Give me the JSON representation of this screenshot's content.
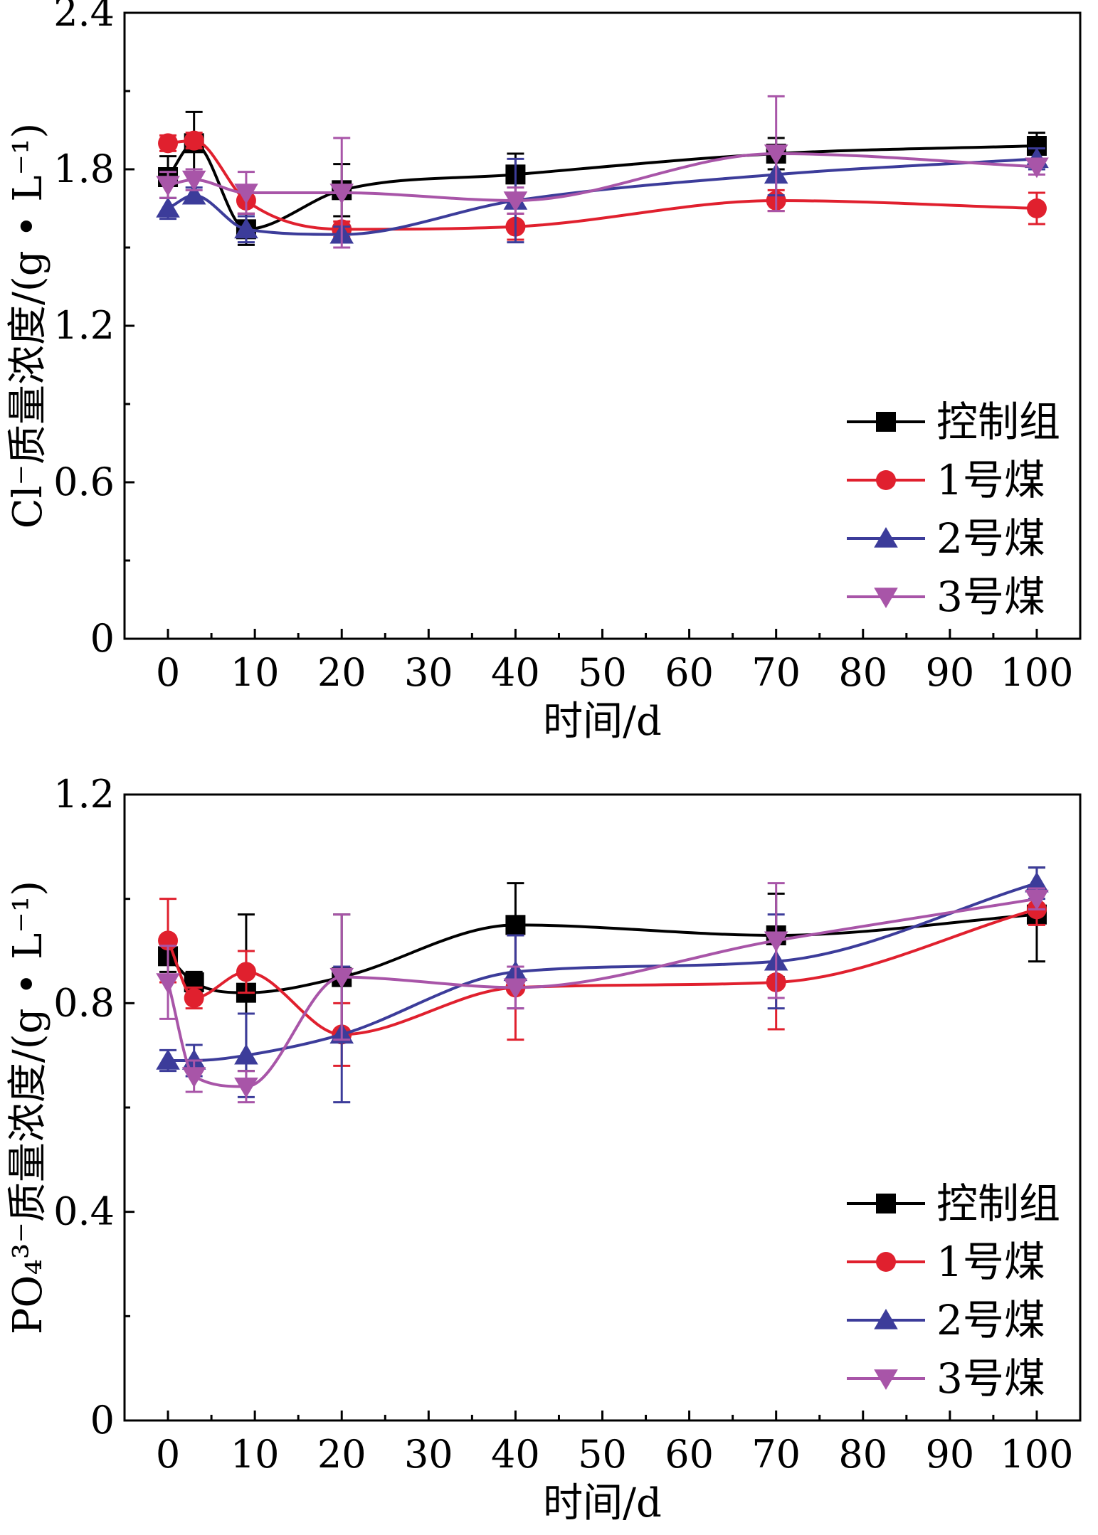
{
  "series_colors": [
    "#000000",
    "#e0202e",
    "#3c3c9a",
    "#a855a8"
  ],
  "series_markers": [
    "square",
    "circle",
    "triangle-up",
    "triangle-down"
  ],
  "chart_data": [
    {
      "type": "line",
      "xlabel": "时间/d",
      "ylabel": "Cl⁻质量浓度/(g • L⁻¹)",
      "xlim": [
        -5,
        105
      ],
      "ylim": [
        0,
        2.4
      ],
      "xticks": [
        "0",
        "10",
        "20",
        "30",
        "40",
        "50",
        "60",
        "70",
        "80",
        "90",
        "100"
      ],
      "yticks": [
        "0",
        "0.6",
        "1.2",
        "1.8",
        "2.4"
      ],
      "legend_position": "lower-right",
      "x": [
        0,
        3,
        9,
        20,
        40,
        70,
        100
      ],
      "series": [
        {
          "name": "控制组",
          "values": [
            1.77,
            1.9,
            1.57,
            1.72,
            1.78,
            1.86,
            1.89
          ],
          "errors": [
            0.08,
            0.12,
            0.06,
            0.1,
            0.08,
            0.06,
            0.05
          ]
        },
        {
          "name": "1号煤",
          "values": [
            1.9,
            1.91,
            1.68,
            1.57,
            1.58,
            1.68,
            1.65
          ],
          "errors": [
            0.03,
            0.03,
            0.05,
            0.03,
            0.05,
            0.04,
            0.06
          ]
        },
        {
          "name": "2号煤",
          "values": [
            1.65,
            1.7,
            1.57,
            1.55,
            1.68,
            1.78,
            1.84
          ],
          "errors": [
            0.04,
            0.03,
            0.05,
            0.03,
            0.16,
            0.08,
            0.04
          ]
        },
        {
          "name": "3号煤",
          "values": [
            1.74,
            1.76,
            1.71,
            1.71,
            1.68,
            1.86,
            1.81
          ],
          "errors": [
            0.05,
            0.04,
            0.08,
            0.21,
            0.05,
            0.22,
            0.03
          ]
        }
      ]
    },
    {
      "type": "line",
      "xlabel": "时间/d",
      "ylabel": "PO₄³⁻质量浓度/(g • L⁻¹)",
      "xlim": [
        -5,
        105
      ],
      "ylim": [
        0,
        1.2
      ],
      "xticks": [
        "0",
        "10",
        "20",
        "30",
        "40",
        "50",
        "60",
        "70",
        "80",
        "90",
        "100"
      ],
      "yticks": [
        "0",
        "0.4",
        "0.8",
        "1.2"
      ],
      "legend_position": "lower-right",
      "x": [
        0,
        3,
        9,
        20,
        40,
        70,
        100
      ],
      "series": [
        {
          "name": "控制组",
          "values": [
            0.89,
            0.84,
            0.82,
            0.85,
            0.95,
            0.93,
            0.97
          ],
          "errors": [
            0.03,
            0.02,
            0.15,
            0.12,
            0.08,
            0.08,
            0.09
          ]
        },
        {
          "name": "1号煤",
          "values": [
            0.92,
            0.81,
            0.86,
            0.74,
            0.83,
            0.84,
            0.98
          ],
          "errors": [
            0.08,
            0.02,
            0.04,
            0.06,
            0.1,
            0.09,
            0.03
          ]
        },
        {
          "name": "2号煤",
          "values": [
            0.69,
            0.69,
            0.7,
            0.74,
            0.86,
            0.88,
            1.03
          ],
          "errors": [
            0.02,
            0.03,
            0.08,
            0.13,
            0.07,
            0.09,
            0.03
          ]
        },
        {
          "name": "3号煤",
          "values": [
            0.84,
            0.66,
            0.64,
            0.85,
            0.83,
            0.92,
            1.0
          ],
          "errors": [
            0.07,
            0.03,
            0.03,
            0.12,
            0.04,
            0.11,
            0.02
          ]
        }
      ]
    }
  ]
}
